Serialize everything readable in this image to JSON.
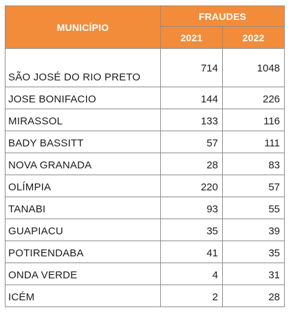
{
  "header": {
    "municipio_label": "MUNICÍPIO",
    "fraudes_label": "FRAUDES",
    "year_2021": "2021",
    "year_2022": "2022"
  },
  "colors": {
    "header_bg": "#f28c3a",
    "header_text": "#ffffff",
    "border": "#8c8c8c"
  },
  "rows": [
    {
      "municipio": "SÃO JOSÉ DO RIO PRETO",
      "v2021": "714",
      "v2022": "1048"
    },
    {
      "municipio": "JOSE BONIFACIO",
      "v2021": "144",
      "v2022": "226"
    },
    {
      "municipio": "MIRASSOL",
      "v2021": "133",
      "v2022": "116"
    },
    {
      "municipio": "BADY BASSITT",
      "v2021": "57",
      "v2022": "111"
    },
    {
      "municipio": "NOVA GRANADA",
      "v2021": "28",
      "v2022": "83"
    },
    {
      "municipio": "OLÍMPIA",
      "v2021": "220",
      "v2022": "57"
    },
    {
      "municipio": "TANABI",
      "v2021": "93",
      "v2022": "55"
    },
    {
      "municipio": "GUAPIACU",
      "v2021": "35",
      "v2022": "39"
    },
    {
      "municipio": "POTIRENDABA",
      "v2021": "41",
      "v2022": "35"
    },
    {
      "municipio": "ONDA VERDE",
      "v2021": "4",
      "v2022": "31"
    },
    {
      "municipio": "ICÉM",
      "v2021": "2",
      "v2022": "28"
    }
  ]
}
